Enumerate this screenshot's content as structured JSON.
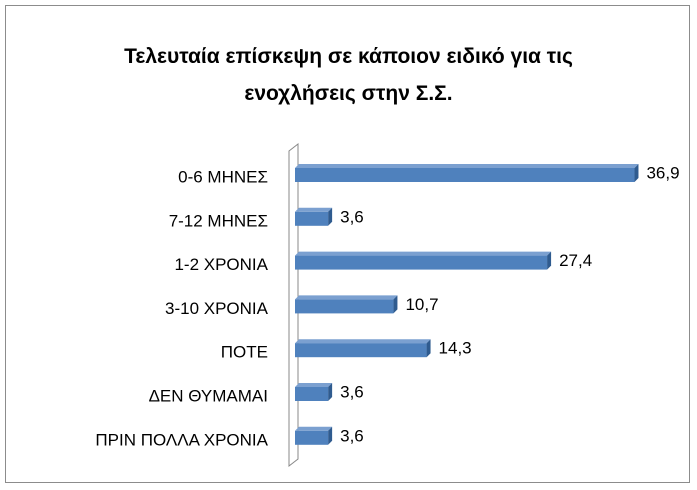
{
  "chart_data": {
    "type": "bar",
    "orientation": "horizontal",
    "title": "Τελευταία επίσκεψη σε κάποιον ειδικό για τις ενοχλήσεις στην Σ.Σ.",
    "categories": [
      "0-6 ΜΗΝΕΣ",
      "7-12 ΜΗΝΕΣ",
      "1-2 ΧΡΟΝΙΑ",
      "3-10 ΧΡΟΝΙΑ",
      "ΠΟΤΕ",
      "ΔΕΝ ΘΥΜΑΜΑΙ",
      "ΠΡΙΝ ΠΟΛΛΑ ΧΡΟΝΙΑ"
    ],
    "values": [
      36.9,
      3.6,
      27.4,
      10.7,
      14.3,
      3.6,
      3.6
    ],
    "value_labels": [
      "36,9",
      "3,6",
      "27,4",
      "10,7",
      "14,3",
      "3,6",
      "3,6"
    ],
    "color": "#4f81bd"
  }
}
